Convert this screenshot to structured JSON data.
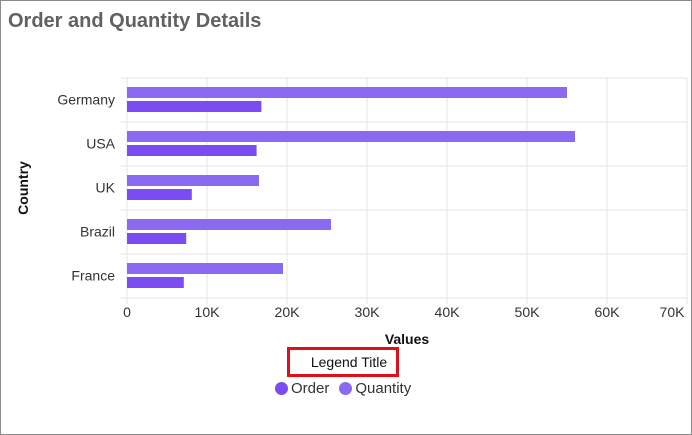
{
  "panel": {
    "title": "Order and Quantity Details"
  },
  "colors": {
    "order": "#7b4cf2",
    "quantity": "#8a6af0",
    "grid": "#e6e6e6",
    "highlight": "#e0101b"
  },
  "chart_data": {
    "type": "bar",
    "orientation": "horizontal",
    "categories": [
      "Germany",
      "USA",
      "UK",
      "Brazil",
      "France"
    ],
    "series": [
      {
        "name": "Order",
        "values": [
          16800,
          16200,
          8100,
          7400,
          7100
        ]
      },
      {
        "name": "Quantity",
        "values": [
          55000,
          56000,
          16500,
          25500,
          19500
        ]
      }
    ],
    "xlabel": "Values",
    "ylabel": "Country",
    "xlim": [
      0,
      70000
    ],
    "xticks": [
      "0",
      "10K",
      "20K",
      "30K",
      "40K",
      "50K",
      "60K",
      "70K"
    ],
    "legend": {
      "title": "Legend Title",
      "position": "bottom"
    },
    "grid": true
  }
}
